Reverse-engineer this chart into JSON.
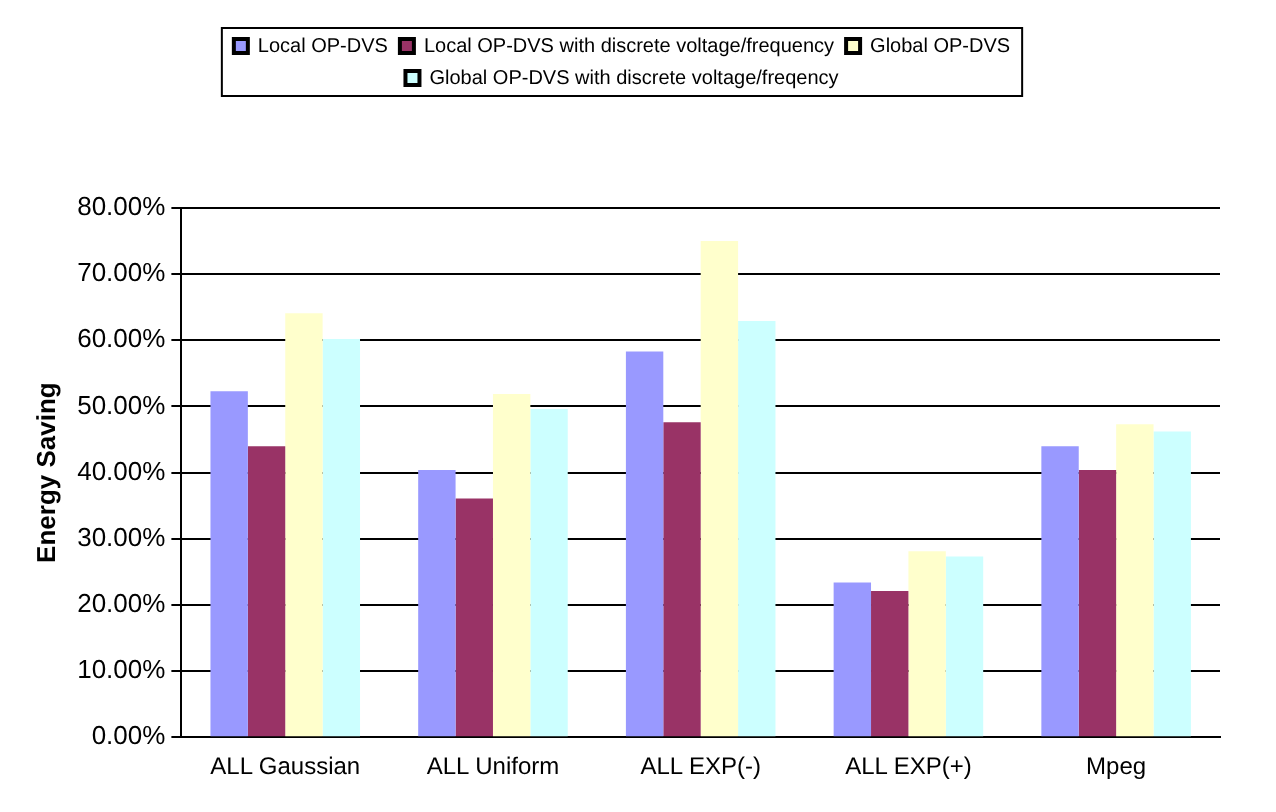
{
  "chart_data": {
    "type": "bar",
    "ylabel": "Energy Saving",
    "categories": [
      "ALL Gaussian",
      "ALL Uniform",
      "ALL EXP(-)",
      "ALL EXP(+)",
      "Mpeg"
    ],
    "series": [
      {
        "name": "Local OP-DVS",
        "color": "#9999ff",
        "values": [
          52.3,
          40.4,
          58.3,
          23.4,
          44.0
        ]
      },
      {
        "name": "Local OP-DVS with discrete voltage/frequency",
        "color": "#993366",
        "values": [
          44.0,
          36.1,
          47.6,
          22.1,
          40.4
        ]
      },
      {
        "name": "Global OP-DVS",
        "color": "#ffffcc",
        "values": [
          64.1,
          51.9,
          75.0,
          28.1,
          47.3
        ]
      },
      {
        "name": "Global OP-DVS with discrete voltage/freqency",
        "color": "#ccffff",
        "values": [
          60.2,
          49.6,
          62.9,
          27.3,
          46.2
        ]
      }
    ],
    "ylim": [
      0,
      80
    ],
    "yticks": [
      {
        "value": 0,
        "label": "0.00%"
      },
      {
        "value": 10,
        "label": "10.00%"
      },
      {
        "value": 20,
        "label": "20.00%"
      },
      {
        "value": 30,
        "label": "30.00%"
      },
      {
        "value": 40,
        "label": "40.00%"
      },
      {
        "value": 50,
        "label": "50.00%"
      },
      {
        "value": 60,
        "label": "60.00%"
      },
      {
        "value": 70,
        "label": "70.00%"
      },
      {
        "value": 80,
        "label": "80.00%"
      }
    ],
    "grid": "y",
    "legend": "top"
  }
}
